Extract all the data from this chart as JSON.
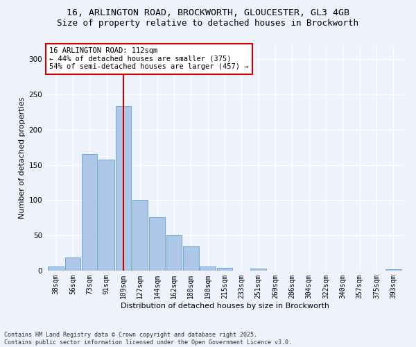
{
  "title1": "16, ARLINGTON ROAD, BROCKWORTH, GLOUCESTER, GL3 4GB",
  "title2": "Size of property relative to detached houses in Brockworth",
  "xlabel": "Distribution of detached houses by size in Brockworth",
  "ylabel": "Number of detached properties",
  "bar_color": "#aec6e8",
  "bar_edge_color": "#5a9fd4",
  "background_color": "#eef2fa",
  "grid_color": "#ffffff",
  "bin_labels": [
    "38sqm",
    "56sqm",
    "73sqm",
    "91sqm",
    "109sqm",
    "127sqm",
    "144sqm",
    "162sqm",
    "180sqm",
    "198sqm",
    "215sqm",
    "233sqm",
    "251sqm",
    "269sqm",
    "286sqm",
    "304sqm",
    "322sqm",
    "340sqm",
    "357sqm",
    "375sqm",
    "393sqm"
  ],
  "bar_heights": [
    6,
    19,
    165,
    158,
    233,
    100,
    76,
    50,
    34,
    6,
    4,
    0,
    3,
    0,
    0,
    0,
    0,
    0,
    0,
    0,
    2
  ],
  "ylim": [
    0,
    320
  ],
  "yticks": [
    0,
    50,
    100,
    150,
    200,
    250,
    300
  ],
  "vline_bin": 4,
  "vline_color": "#cc0000",
  "annotation_text": "16 ARLINGTON ROAD: 112sqm\n← 44% of detached houses are smaller (375)\n54% of semi-detached houses are larger (457) →",
  "annotation_box_color": "#ffffff",
  "annotation_box_edge_color": "#cc0000",
  "footer_text": "Contains HM Land Registry data © Crown copyright and database right 2025.\nContains public sector information licensed under the Open Government Licence v3.0.",
  "title_fontsize": 9.5,
  "title2_fontsize": 9,
  "axis_label_fontsize": 8,
  "tick_fontsize": 7,
  "annotation_fontsize": 7.5,
  "footer_fontsize": 6
}
